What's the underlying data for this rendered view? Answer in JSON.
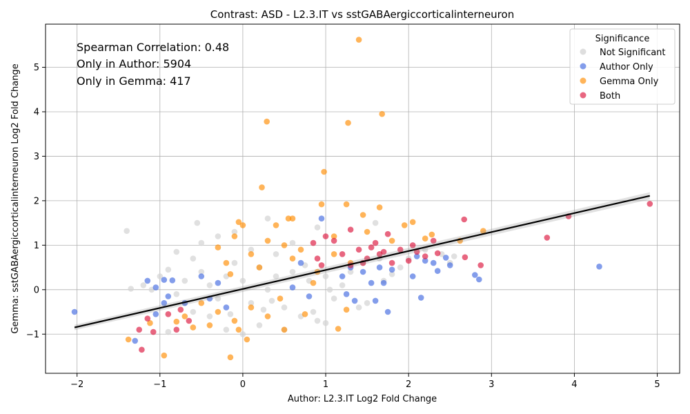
{
  "chart_data": {
    "type": "scatter",
    "title": "Contrast: ASD - L2.3.IT vs sstGABAergiccorticalinterneuron",
    "xlabel": "Author: L2.3.IT Log2 Fold Change",
    "ylabel": "Gemma: sstGABAergiccorticalinterneuron Log2 Fold Change",
    "xlim": [
      -2.38,
      5.27
    ],
    "ylim": [
      -1.88,
      5.97
    ],
    "xticks": [
      -2,
      -1,
      0,
      1,
      2,
      3,
      4,
      5
    ],
    "yticks": [
      -1,
      0,
      1,
      2,
      3,
      4,
      5
    ],
    "grid": true,
    "legend": {
      "title": "Significance",
      "placement": "top-right",
      "entries": [
        "Not Significant",
        "Author Only",
        "Gemma Only",
        "Both"
      ]
    },
    "annotations": [
      "Spearman Correlation: 0.48",
      "Only in Author: 5904",
      "Only in Gemma: 417"
    ],
    "regression": {
      "x": [
        -2.03,
        4.91
      ],
      "y": [
        -0.85,
        2.11
      ]
    },
    "series": [
      {
        "name": "Not Significant",
        "color": "#d3d3d3",
        "points": [
          [
            -1.4,
            1.32
          ],
          [
            -0.55,
            1.5
          ],
          [
            -0.3,
            1.2
          ],
          [
            0.3,
            1.6
          ],
          [
            0.9,
            1.4
          ],
          [
            1.6,
            1.5
          ],
          [
            -0.8,
            0.85
          ],
          [
            -0.6,
            0.7
          ],
          [
            -0.9,
            0.45
          ],
          [
            -1.2,
            0.1
          ],
          [
            -1.0,
            0.3
          ],
          [
            -0.7,
            0.2
          ],
          [
            -0.5,
            0.4
          ],
          [
            -0.4,
            0.1
          ],
          [
            -0.3,
            -0.2
          ],
          [
            -0.2,
            0.3
          ],
          [
            -0.1,
            0.6
          ],
          [
            0.0,
            0.2
          ],
          [
            0.1,
            -0.3
          ],
          [
            0.2,
            0.5
          ],
          [
            0.3,
            0.0
          ],
          [
            0.4,
            0.3
          ],
          [
            0.5,
            -0.4
          ],
          [
            0.6,
            0.4
          ],
          [
            0.7,
            -0.6
          ],
          [
            0.8,
            0.2
          ],
          [
            0.9,
            -0.7
          ],
          [
            1.0,
            0.3
          ],
          [
            1.1,
            -0.2
          ],
          [
            1.2,
            0.1
          ],
          [
            1.3,
            0.4
          ],
          [
            1.5,
            -0.3
          ],
          [
            1.7,
            0.2
          ],
          [
            1.9,
            0.5
          ],
          [
            2.0,
            0.7
          ],
          [
            2.2,
            0.9
          ],
          [
            2.4,
            0.8
          ],
          [
            2.5,
            0.6
          ],
          [
            2.55,
            0.75
          ],
          [
            -0.6,
            -0.5
          ],
          [
            -0.4,
            -0.6
          ],
          [
            -0.2,
            -0.9
          ],
          [
            0.0,
            -1.0
          ],
          [
            0.2,
            -0.8
          ],
          [
            0.5,
            -0.9
          ],
          [
            -0.9,
            -0.95
          ],
          [
            -0.7,
            -0.3
          ],
          [
            0.6,
            1.05
          ],
          [
            0.4,
            0.8
          ],
          [
            -0.5,
            1.05
          ],
          [
            0.25,
            -0.45
          ],
          [
            0.85,
            -0.5
          ],
          [
            1.4,
            -0.4
          ],
          [
            -1.1,
            0.0
          ],
          [
            -0.8,
            -0.1
          ],
          [
            0.1,
            0.9
          ],
          [
            -0.1,
            1.3
          ],
          [
            1.05,
            0.0
          ],
          [
            1.45,
            0.6
          ],
          [
            -1.35,
            0.02
          ],
          [
            1.0,
            -0.75
          ],
          [
            0.75,
            0.55
          ],
          [
            -0.15,
            -0.55
          ],
          [
            0.35,
            -0.25
          ],
          [
            1.65,
            0.7
          ],
          [
            1.8,
            0.35
          ]
        ]
      },
      {
        "name": "Author Only",
        "color": "#4169e1",
        "points": [
          [
            -2.03,
            -0.5
          ],
          [
            -1.3,
            -1.15
          ],
          [
            -1.15,
            0.2
          ],
          [
            -1.05,
            0.05
          ],
          [
            -0.95,
            0.22
          ],
          [
            -0.85,
            0.21
          ],
          [
            -0.9,
            -0.15
          ],
          [
            -1.05,
            -0.55
          ],
          [
            -0.7,
            -0.3
          ],
          [
            -0.5,
            0.3
          ],
          [
            -0.4,
            -0.2
          ],
          [
            -0.3,
            0.15
          ],
          [
            -0.2,
            -0.4
          ],
          [
            0.95,
            1.6
          ],
          [
            0.7,
            0.6
          ],
          [
            1.2,
            0.3
          ],
          [
            1.3,
            0.5
          ],
          [
            1.35,
            -0.25
          ],
          [
            1.45,
            0.4
          ],
          [
            1.55,
            0.15
          ],
          [
            1.6,
            -0.25
          ],
          [
            1.7,
            0.15
          ],
          [
            1.75,
            -0.5
          ],
          [
            2.05,
            0.3
          ],
          [
            2.15,
            -0.18
          ],
          [
            2.3,
            0.6
          ],
          [
            2.35,
            0.42
          ],
          [
            2.45,
            0.72
          ],
          [
            2.5,
            0.55
          ],
          [
            2.8,
            0.33
          ],
          [
            2.85,
            0.23
          ],
          [
            4.3,
            0.52
          ],
          [
            1.8,
            0.45
          ],
          [
            2.1,
            0.75
          ],
          [
            1.25,
            -0.1
          ],
          [
            0.8,
            -0.15
          ],
          [
            0.6,
            0.05
          ],
          [
            -0.95,
            -0.3
          ],
          [
            1.65,
            0.5
          ],
          [
            2.2,
            0.65
          ]
        ]
      },
      {
        "name": "Gemma Only",
        "color": "#ff8c00",
        "points": [
          [
            1.4,
            5.62
          ],
          [
            1.68,
            3.95
          ],
          [
            0.29,
            3.78
          ],
          [
            1.27,
            3.75
          ],
          [
            0.98,
            2.65
          ],
          [
            0.23,
            2.3
          ],
          [
            0.95,
            1.92
          ],
          [
            1.25,
            1.92
          ],
          [
            1.65,
            1.85
          ],
          [
            1.45,
            1.68
          ],
          [
            0.55,
            1.6
          ],
          [
            0.6,
            1.6
          ],
          [
            -0.05,
            1.52
          ],
          [
            2.05,
            1.52
          ],
          [
            0.0,
            1.45
          ],
          [
            0.4,
            1.45
          ],
          [
            2.9,
            1.32
          ],
          [
            -0.1,
            1.2
          ],
          [
            0.3,
            1.1
          ],
          [
            0.5,
            1.0
          ],
          [
            -0.3,
            0.95
          ],
          [
            0.1,
            0.8
          ],
          [
            0.7,
            0.9
          ],
          [
            1.1,
            1.2
          ],
          [
            1.5,
            1.3
          ],
          [
            1.8,
            1.1
          ],
          [
            2.2,
            1.15
          ],
          [
            2.62,
            1.1
          ],
          [
            2.28,
            1.24
          ],
          [
            -0.2,
            0.6
          ],
          [
            0.2,
            0.5
          ],
          [
            0.6,
            0.7
          ],
          [
            0.9,
            0.4
          ],
          [
            1.3,
            0.6
          ],
          [
            -0.5,
            -0.3
          ],
          [
            -0.3,
            -0.5
          ],
          [
            -0.1,
            -0.7
          ],
          [
            0.1,
            -0.4
          ],
          [
            0.3,
            -0.6
          ],
          [
            -0.7,
            -0.6
          ],
          [
            -0.8,
            -0.72
          ],
          [
            -0.6,
            -0.85
          ],
          [
            -0.4,
            -0.8
          ],
          [
            -0.05,
            -0.9
          ],
          [
            0.05,
            -1.12
          ],
          [
            0.5,
            -0.9
          ],
          [
            0.75,
            -0.55
          ],
          [
            1.25,
            -0.45
          ],
          [
            1.15,
            -0.88
          ],
          [
            -0.95,
            -1.48
          ],
          [
            -0.15,
            -1.52
          ],
          [
            -1.38,
            -1.12
          ],
          [
            -1.12,
            -0.75
          ],
          [
            0.45,
            -0.2
          ],
          [
            0.85,
            0.15
          ],
          [
            1.95,
            1.45
          ],
          [
            1.1,
            0.8
          ],
          [
            -0.15,
            0.35
          ]
        ]
      },
      {
        "name": "Both",
        "color": "#dc143c",
        "points": [
          [
            4.91,
            1.93
          ],
          [
            3.93,
            1.65
          ],
          [
            3.67,
            1.17
          ],
          [
            2.67,
            1.58
          ],
          [
            2.68,
            0.73
          ],
          [
            2.87,
            0.55
          ],
          [
            2.3,
            1.1
          ],
          [
            2.2,
            0.75
          ],
          [
            2.0,
            0.65
          ],
          [
            1.9,
            0.9
          ],
          [
            1.8,
            0.6
          ],
          [
            1.7,
            0.85
          ],
          [
            1.6,
            1.05
          ],
          [
            1.5,
            0.7
          ],
          [
            1.4,
            0.9
          ],
          [
            1.3,
            0.55
          ],
          [
            1.2,
            0.8
          ],
          [
            1.1,
            1.1
          ],
          [
            1.0,
            1.2
          ],
          [
            0.9,
            0.7
          ],
          [
            0.85,
            1.05
          ],
          [
            1.3,
            1.35
          ],
          [
            1.75,
            1.25
          ],
          [
            2.05,
            1.0
          ],
          [
            2.35,
            0.82
          ],
          [
            -1.22,
            -1.35
          ],
          [
            -1.25,
            -0.9
          ],
          [
            -1.08,
            -0.95
          ],
          [
            -1.15,
            -0.65
          ],
          [
            -0.8,
            -0.9
          ],
          [
            -0.75,
            -0.45
          ],
          [
            -0.65,
            -0.7
          ],
          [
            -0.9,
            -0.55
          ],
          [
            1.55,
            0.95
          ],
          [
            1.45,
            0.6
          ],
          [
            1.65,
            0.8
          ],
          [
            2.1,
            0.85
          ],
          [
            0.95,
            0.55
          ]
        ]
      }
    ]
  }
}
